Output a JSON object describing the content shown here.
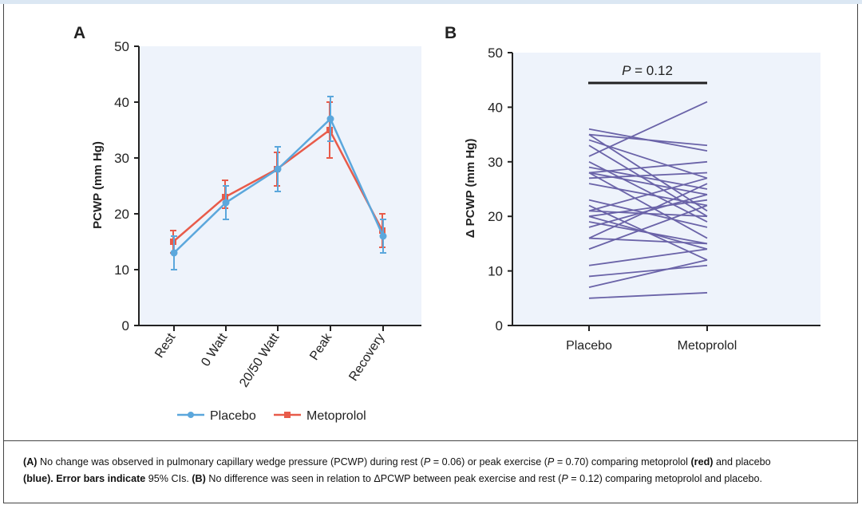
{
  "chart_data": [
    {
      "type": "line",
      "panel_label": "A",
      "ylabel": "PCWP (mm Hg)",
      "ylim": [
        0,
        50
      ],
      "yticks": [
        "0",
        "10",
        "20",
        "30",
        "40",
        "50"
      ],
      "categories": [
        "Rest",
        "0 Watt",
        "20/50 Watt",
        "Peak",
        "Recovery"
      ],
      "series": [
        {
          "name": "Placebo",
          "color": "#5ba7dc",
          "values": [
            13,
            22,
            28,
            37,
            16
          ],
          "ci_low": [
            10,
            19,
            24,
            33,
            13
          ],
          "ci_high": [
            16,
            25,
            32,
            41,
            19
          ]
        },
        {
          "name": "Metoprolol",
          "color": "#e85b4a",
          "values": [
            15,
            23,
            28,
            35,
            17
          ],
          "ci_low": [
            13,
            21,
            25,
            30,
            14
          ],
          "ci_high": [
            17,
            26,
            31,
            40,
            20
          ]
        }
      ],
      "legend": [
        "Placebo",
        "Metoprolol"
      ]
    },
    {
      "type": "line",
      "panel_label": "B",
      "ylabel": "Δ PCWP (mm Hg)",
      "ylim": [
        0,
        50
      ],
      "yticks": [
        "0",
        "10",
        "20",
        "30",
        "40",
        "50"
      ],
      "categories": [
        "Placebo",
        "Metoprolol"
      ],
      "annotation": "P = 0.12",
      "line_color": "#6a63a8",
      "pairs": [
        [
          5,
          6
        ],
        [
          7,
          12
        ],
        [
          9,
          11
        ],
        [
          11,
          14
        ],
        [
          14,
          22
        ],
        [
          16,
          26
        ],
        [
          16,
          15
        ],
        [
          18,
          24
        ],
        [
          19,
          15
        ],
        [
          20,
          23
        ],
        [
          20,
          14
        ],
        [
          21,
          27
        ],
        [
          21,
          20
        ],
        [
          22,
          12
        ],
        [
          23,
          18
        ],
        [
          26,
          22
        ],
        [
          27,
          28
        ],
        [
          28,
          24
        ],
        [
          28,
          16
        ],
        [
          28,
          30
        ],
        [
          29,
          25
        ],
        [
          30,
          19
        ],
        [
          31,
          41
        ],
        [
          33,
          20
        ],
        [
          34,
          27
        ],
        [
          35,
          33
        ],
        [
          35,
          21
        ],
        [
          36,
          32
        ]
      ]
    }
  ],
  "caption": {
    "a_label": "(A)",
    "a_text1": " No change was observed in pulmonary capillary wedge pressure (PCWP) during rest (",
    "p1": "P",
    "a_text2": " = 0.06) or peak exercise (",
    "p2": "P",
    "a_text3": " = 0.70) comparing metoprolol ",
    "red": "(red)",
    "a_text4": " and placebo",
    "blue": "(blue).",
    "err_bold": " Error bars indicate",
    "a_text5": " 95% CIs. ",
    "b_label": "(B)",
    "b_text1": " No difference was seen in relation to ΔPCWP between peak exercise and rest (",
    "p3": "P",
    "b_text2": " = 0.12) comparing metoprolol and placebo."
  }
}
